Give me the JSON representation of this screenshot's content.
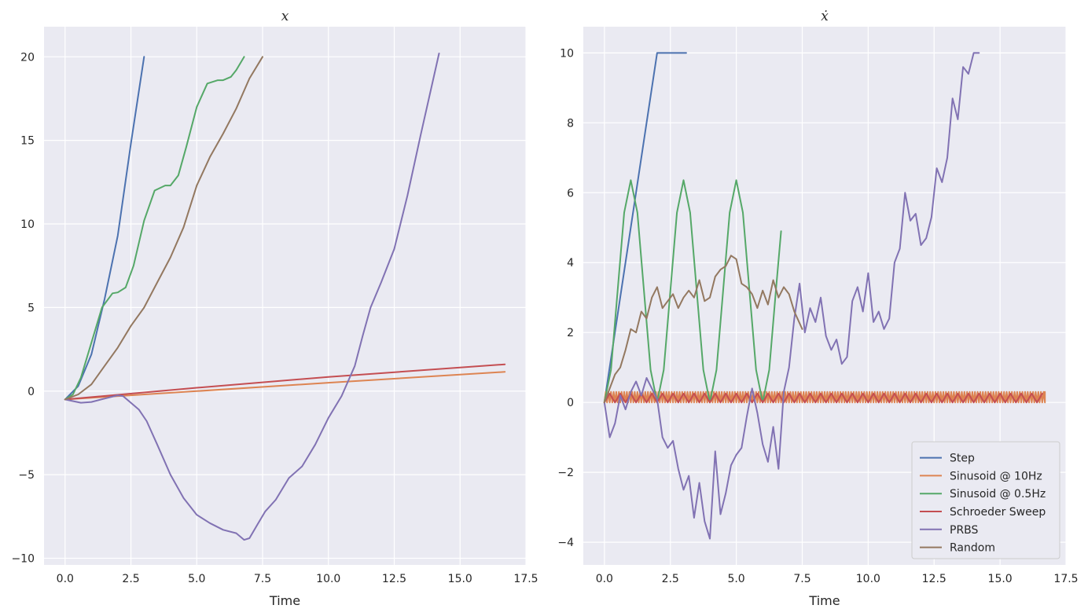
{
  "chart_data": [
    {
      "type": "line",
      "title": "x",
      "xlabel": "Time",
      "ylabel": "",
      "xlim": [
        -0.8,
        17.5
      ],
      "ylim": [
        -10.4,
        21.8
      ],
      "xticks": [
        0.0,
        2.5,
        5.0,
        7.5,
        10.0,
        12.5,
        15.0,
        17.5
      ],
      "xtick_labels": [
        "0.0",
        "2.5",
        "5.0",
        "7.5",
        "10.0",
        "12.5",
        "15.0",
        "17.5"
      ],
      "yticks": [
        -10,
        -5,
        0,
        5,
        10,
        15,
        20
      ],
      "ytick_labels": [
        "−10",
        "−5",
        "0",
        "5",
        "10",
        "15",
        "20"
      ],
      "grid": true,
      "series": [
        {
          "name": "Step",
          "color": "#4c72b0",
          "x": [
            0,
            0.5,
            1.0,
            1.5,
            2.0,
            2.5,
            3.0
          ],
          "y": [
            -0.5,
            0.3,
            2.2,
            5.5,
            9.3,
            14.8,
            20.0
          ]
        },
        {
          "name": "Sinusoid @ 10Hz",
          "color": "#dd8452",
          "x": [
            0,
            5,
            10,
            16.7
          ],
          "y": [
            -0.5,
            0.0,
            0.5,
            1.15
          ]
        },
        {
          "name": "Sinusoid @ 0.5Hz",
          "color": "#55a868",
          "x": [
            0,
            0.3,
            0.6,
            1.0,
            1.4,
            1.8,
            2.0,
            2.3,
            2.6,
            3.0,
            3.4,
            3.8,
            4.0,
            4.3,
            4.6,
            5.0,
            5.4,
            5.8,
            6.0,
            6.3,
            6.5,
            6.8
          ],
          "y": [
            -0.5,
            -0.2,
            0.8,
            2.9,
            5.0,
            5.85,
            5.9,
            6.2,
            7.5,
            10.2,
            12.0,
            12.3,
            12.3,
            12.9,
            14.6,
            17.0,
            18.4,
            18.6,
            18.6,
            18.8,
            19.2,
            20.0
          ]
        },
        {
          "name": "Schroeder Sweep",
          "color": "#c44e52",
          "x": [
            0,
            5,
            10,
            16.7
          ],
          "y": [
            -0.5,
            0.2,
            0.85,
            1.6
          ]
        },
        {
          "name": "PRBS",
          "color": "#8172b3",
          "x": [
            0,
            0.3,
            0.6,
            1.0,
            1.5,
            2.0,
            2.2,
            2.5,
            2.8,
            3.1,
            3.5,
            4.0,
            4.5,
            5.0,
            5.5,
            6.0,
            6.5,
            6.8,
            7.0,
            7.3,
            7.6,
            8.0,
            8.5,
            9.0,
            9.5,
            10.0,
            10.5,
            11.0,
            11.3,
            11.6,
            12.0,
            12.5,
            13.0,
            13.5,
            14.2
          ],
          "y": [
            -0.5,
            -0.6,
            -0.7,
            -0.65,
            -0.45,
            -0.25,
            -0.3,
            -0.7,
            -1.1,
            -1.8,
            -3.2,
            -5.0,
            -6.4,
            -7.4,
            -7.9,
            -8.3,
            -8.5,
            -8.9,
            -8.8,
            -8.0,
            -7.2,
            -6.5,
            -5.2,
            -4.5,
            -3.2,
            -1.6,
            -0.3,
            1.5,
            3.3,
            5.0,
            6.5,
            8.5,
            11.7,
            15.3,
            20.2
          ]
        },
        {
          "name": "Random",
          "color": "#937860",
          "x": [
            0,
            0.5,
            1.0,
            1.5,
            2.0,
            2.5,
            3.0,
            3.5,
            4.0,
            4.5,
            5.0,
            5.5,
            6.0,
            6.5,
            7.0,
            7.5
          ],
          "y": [
            -0.5,
            -0.2,
            0.4,
            1.5,
            2.6,
            3.9,
            5.0,
            6.5,
            8.0,
            9.8,
            12.3,
            14.0,
            15.4,
            16.9,
            18.7,
            20.0
          ]
        }
      ]
    },
    {
      "type": "line",
      "title": "ẋ",
      "xlabel": "Time",
      "ylabel": "",
      "xlim": [
        -0.8,
        17.5
      ],
      "ylim": [
        -4.65,
        10.75
      ],
      "xticks": [
        0.0,
        2.5,
        5.0,
        7.5,
        10.0,
        12.5,
        15.0,
        17.5
      ],
      "xtick_labels": [
        "0.0",
        "2.5",
        "5.0",
        "7.5",
        "10.0",
        "12.5",
        "15.0",
        "17.5"
      ],
      "yticks": [
        -4,
        -2,
        0,
        2,
        4,
        6,
        8,
        10
      ],
      "ytick_labels": [
        "−4",
        "−2",
        "0",
        "2",
        "4",
        "6",
        "8",
        "10"
      ],
      "grid": true,
      "legend": {
        "position": "lower-right"
      },
      "series": [
        {
          "name": "Step",
          "color": "#4c72b0",
          "x": [
            0,
            2.0,
            3.1
          ],
          "y": [
            0,
            10.0,
            10.0
          ]
        },
        {
          "name": "Sinusoid @ 10Hz",
          "color": "#dd8452",
          "style": "sawtooth",
          "x": [
            0,
            16.7
          ],
          "y_low": 0.0,
          "y_high": 0.3,
          "period": 0.1
        },
        {
          "name": "Sinusoid @ 0.5Hz",
          "color": "#55a868",
          "x": [
            0,
            0.25,
            0.5,
            0.75,
            1.0,
            1.25,
            1.5,
            1.75,
            2.0,
            2.25,
            2.5,
            2.75,
            3.0,
            3.25,
            3.5,
            3.75,
            4.0,
            4.25,
            4.5,
            4.75,
            5.0,
            5.25,
            5.5,
            5.75,
            6.0,
            6.25,
            6.5,
            6.7
          ],
          "y": [
            0,
            0.93,
            3.18,
            5.43,
            6.36,
            5.43,
            3.18,
            0.93,
            0,
            0.93,
            3.18,
            5.43,
            6.36,
            5.43,
            3.18,
            0.93,
            0,
            0.93,
            3.18,
            5.43,
            6.36,
            5.43,
            3.18,
            0.93,
            0,
            0.93,
            3.18,
            4.9
          ]
        },
        {
          "name": "Schroeder Sweep",
          "color": "#c44e52",
          "style": "sawtooth",
          "x": [
            0,
            16.7
          ],
          "y_low": 0.0,
          "y_high": 0.25,
          "period": 0.4
        },
        {
          "name": "PRBS",
          "color": "#8172b3",
          "x": [
            0,
            0.2,
            0.4,
            0.6,
            0.8,
            1.0,
            1.2,
            1.4,
            1.6,
            1.8,
            2.0,
            2.2,
            2.4,
            2.6,
            2.8,
            3.0,
            3.2,
            3.4,
            3.6,
            3.8,
            4.0,
            4.2,
            4.4,
            4.6,
            4.8,
            5.0,
            5.2,
            5.4,
            5.6,
            5.8,
            6.0,
            6.2,
            6.4,
            6.6,
            6.8,
            7.0,
            7.2,
            7.4,
            7.6,
            7.8,
            8.0,
            8.2,
            8.4,
            8.6,
            8.8,
            9.0,
            9.2,
            9.4,
            9.6,
            9.8,
            10.0,
            10.2,
            10.4,
            10.6,
            10.8,
            11.0,
            11.2,
            11.4,
            11.6,
            11.8,
            12.0,
            12.2,
            12.4,
            12.6,
            12.8,
            13.0,
            13.2,
            13.4,
            13.6,
            13.8,
            14.0,
            14.2
          ],
          "y": [
            0,
            -1.0,
            -0.6,
            0.2,
            -0.2,
            0.3,
            0.6,
            0.2,
            0.7,
            0.4,
            0.1,
            -1.0,
            -1.3,
            -1.1,
            -1.9,
            -2.5,
            -2.1,
            -3.3,
            -2.3,
            -3.4,
            -3.9,
            -1.4,
            -3.2,
            -2.6,
            -1.8,
            -1.5,
            -1.3,
            -0.4,
            0.4,
            -0.3,
            -1.2,
            -1.7,
            -0.7,
            -1.9,
            0.3,
            1.0,
            2.4,
            3.4,
            2.0,
            2.7,
            2.3,
            3.0,
            1.9,
            1.5,
            1.8,
            1.1,
            1.3,
            2.9,
            3.3,
            2.6,
            3.7,
            2.3,
            2.6,
            2.1,
            2.4,
            4.0,
            4.4,
            6.0,
            5.2,
            5.4,
            4.5,
            4.7,
            5.3,
            6.7,
            6.3,
            7.0,
            8.7,
            8.1,
            9.6,
            9.4,
            10.0,
            10.0
          ]
        },
        {
          "name": "Random",
          "color": "#937860",
          "x": [
            0,
            0.2,
            0.4,
            0.6,
            0.8,
            1.0,
            1.2,
            1.4,
            1.6,
            1.8,
            2.0,
            2.2,
            2.4,
            2.6,
            2.8,
            3.0,
            3.2,
            3.4,
            3.6,
            3.8,
            4.0,
            4.2,
            4.4,
            4.6,
            4.8,
            5.0,
            5.2,
            5.4,
            5.6,
            5.8,
            6.0,
            6.2,
            6.4,
            6.6,
            6.8,
            7.0,
            7.2,
            7.5
          ],
          "y": [
            0,
            0.4,
            0.8,
            1.0,
            1.5,
            2.1,
            2.0,
            2.6,
            2.4,
            3.0,
            3.3,
            2.7,
            2.9,
            3.1,
            2.7,
            3.0,
            3.2,
            3.0,
            3.5,
            2.9,
            3.0,
            3.6,
            3.8,
            3.9,
            4.2,
            4.1,
            3.4,
            3.3,
            3.1,
            2.7,
            3.2,
            2.8,
            3.5,
            3.0,
            3.3,
            3.1,
            2.6,
            2.1
          ]
        }
      ]
    }
  ]
}
